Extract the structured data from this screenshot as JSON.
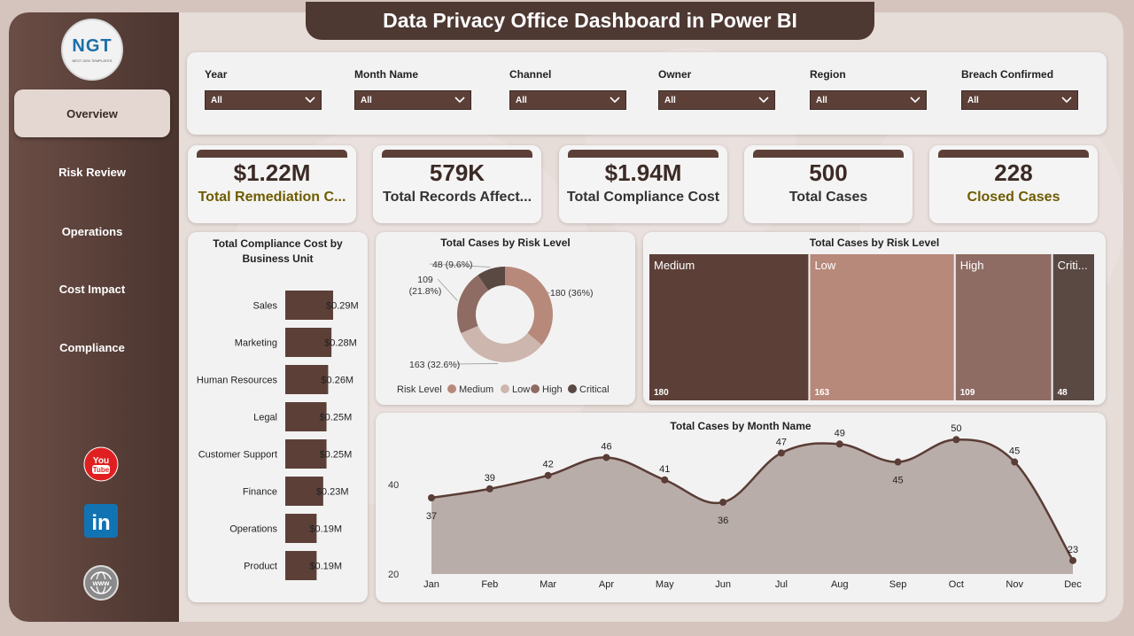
{
  "header": {
    "title": "Data Privacy Office Dashboard in Power BI"
  },
  "logo": {
    "text": "NGT",
    "subtext": "NEXT GEN TEMPLATES"
  },
  "sidebar": {
    "items": [
      {
        "label": "Overview",
        "active": true
      },
      {
        "label": "Risk Review",
        "active": false
      },
      {
        "label": "Operations",
        "active": false
      },
      {
        "label": "Cost Impact",
        "active": false
      },
      {
        "label": "Compliance",
        "active": false
      }
    ],
    "social": [
      {
        "icon": "youtube-icon",
        "text": "You Tube"
      },
      {
        "icon": "linkedin-icon",
        "text": "in"
      },
      {
        "icon": "globe-icon",
        "text": "www"
      }
    ]
  },
  "filters": [
    {
      "label": "Year",
      "value": "All"
    },
    {
      "label": "Month Name",
      "value": "All"
    },
    {
      "label": "Channel",
      "value": "All"
    },
    {
      "label": "Owner",
      "value": "All"
    },
    {
      "label": "Region",
      "value": "All"
    },
    {
      "label": "Breach Confirmed",
      "value": "All"
    }
  ],
  "kpis": [
    {
      "value": "$1.22M",
      "label": "Total Remediation C...",
      "label_color": "#6e5c00"
    },
    {
      "value": "579K",
      "label": "Total Records Affect...",
      "label_color": "#333333"
    },
    {
      "value": "$1.94M",
      "label": "Total Compliance Cost",
      "label_color": "#333333"
    },
    {
      "value": "500",
      "label": "Total Cases",
      "label_color": "#333333"
    },
    {
      "value": "228",
      "label": "Closed Cases",
      "label_color": "#6e5c00"
    }
  ],
  "colors": {
    "dark": "#5c4038",
    "medium": "#b7897a",
    "low": "#ccb6ad",
    "high": "#8e6c63",
    "critical": "#5a4843"
  },
  "chart_data": [
    {
      "id": "compliance-by-bu",
      "type": "bar",
      "orientation": "horizontal",
      "title": "Total Compliance Cost by Business Unit",
      "categories": [
        "Sales",
        "Marketing",
        "Human Resources",
        "Legal",
        "Customer Support",
        "Finance",
        "Operations",
        "Product"
      ],
      "values": [
        0.29,
        0.28,
        0.26,
        0.25,
        0.25,
        0.23,
        0.19,
        0.19
      ],
      "data_labels": [
        "$0.29M",
        "$0.28M",
        "$0.26M",
        "$0.25M",
        "$0.25M",
        "$0.23M",
        "$0.19M",
        "$0.19M"
      ],
      "unit": "$M"
    },
    {
      "id": "cases-by-risk-donut",
      "type": "pie",
      "donut": true,
      "title": "Total Cases by Risk Level",
      "legend_title": "Risk Level",
      "legend_position": "bottom",
      "categories": [
        "Medium",
        "Low",
        "High",
        "Critical"
      ],
      "values": [
        180,
        163,
        109,
        48
      ],
      "data_labels": [
        "180 (36%)",
        "163 (32.6%)",
        "109 (21.8%)",
        "48 (9.6%)"
      ]
    },
    {
      "id": "cases-by-risk-treemap",
      "type": "treemap",
      "title": "Total Cases by Risk Level",
      "categories": [
        "Medium",
        "Low",
        "High",
        "Criti..."
      ],
      "values": [
        180,
        163,
        109,
        48
      ],
      "data_labels": [
        "180",
        "163",
        "109",
        "48"
      ]
    },
    {
      "id": "cases-by-month",
      "type": "area",
      "title": "Total Cases by Month Name",
      "categories": [
        "Jan",
        "Feb",
        "Mar",
        "Apr",
        "May",
        "Jun",
        "Jul",
        "Aug",
        "Sep",
        "Oct",
        "Nov",
        "Dec"
      ],
      "values": [
        37,
        39,
        42,
        46,
        41,
        36,
        47,
        49,
        45,
        50,
        45,
        23
      ],
      "y_ticks": [
        "40",
        "20"
      ],
      "ylim": [
        20,
        50
      ]
    }
  ]
}
